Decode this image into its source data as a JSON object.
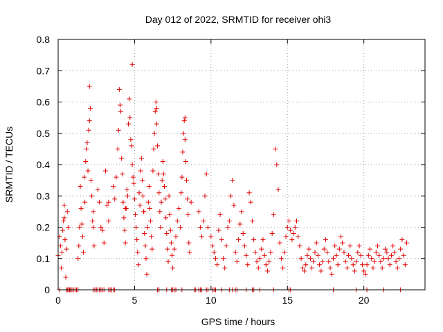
{
  "chart_data": {
    "type": "scatter",
    "title": "Day 012 of 2022, SRMTID for receiver ohi3",
    "xlabel": "GPS time / hours",
    "ylabel": "SRMTID / TECUs",
    "xlim": [
      0,
      24
    ],
    "ylim": [
      0,
      0.8
    ],
    "xticks": [
      0,
      5,
      10,
      15,
      20
    ],
    "yticks": [
      0,
      0.1,
      0.2,
      0.3,
      0.4,
      0.5,
      0.6,
      0.7,
      0.8
    ],
    "xtick_labels": [
      "0",
      "5",
      "10",
      "15",
      "20"
    ],
    "ytick_labels": [
      "0",
      "0.1",
      "0.2",
      "0.3",
      "0.4",
      "0.5",
      "0.6",
      "0.7",
      "0.8"
    ],
    "grid": true,
    "marker": "+",
    "color": "#e00000",
    "series": [
      {
        "name": "SRMTID",
        "x": [
          0.0,
          0.1,
          0.15,
          0.2,
          0.25,
          0.3,
          0.35,
          0.4,
          0.45,
          0.5,
          0.55,
          0.6,
          0.65,
          0.7,
          0.75,
          1.3,
          1.35,
          1.4,
          1.45,
          1.5,
          1.55,
          1.6,
          1.65,
          1.7,
          1.75,
          1.8,
          1.85,
          1.9,
          1.95,
          2.0,
          2.05,
          2.1,
          2.15,
          2.2,
          2.25,
          2.3,
          2.35,
          2.6,
          2.7,
          2.8,
          2.9,
          3.0,
          3.1,
          3.2,
          3.3,
          3.6,
          3.7,
          3.8,
          3.9,
          3.95,
          4.0,
          4.05,
          4.1,
          4.15,
          4.2,
          4.25,
          4.3,
          4.35,
          4.4,
          4.45,
          4.5,
          4.55,
          4.6,
          4.65,
          4.7,
          4.75,
          4.8,
          4.85,
          4.9,
          4.95,
          5.0,
          5.05,
          5.1,
          5.15,
          5.2,
          5.25,
          5.3,
          5.35,
          5.4,
          5.45,
          5.5,
          5.55,
          5.6,
          5.65,
          5.7,
          5.75,
          5.8,
          5.85,
          5.9,
          5.95,
          6.0,
          6.05,
          6.1,
          6.15,
          6.2,
          6.25,
          6.3,
          6.35,
          6.4,
          6.45,
          6.5,
          6.55,
          6.6,
          6.65,
          6.7,
          6.75,
          6.8,
          6.85,
          6.9,
          6.95,
          7.0,
          7.05,
          7.1,
          7.15,
          7.2,
          7.25,
          7.3,
          7.35,
          7.4,
          7.45,
          7.5,
          7.6,
          7.7,
          7.8,
          7.9,
          8.0,
          8.05,
          8.1,
          8.15,
          8.2,
          8.25,
          8.3,
          8.35,
          8.4,
          8.45,
          8.5,
          8.55,
          8.6,
          8.7,
          9.2,
          9.3,
          9.4,
          9.5,
          9.6,
          9.7,
          9.8,
          10.0,
          10.1,
          10.2,
          10.3,
          10.4,
          10.5,
          10.6,
          10.7,
          10.8,
          10.9,
          11.0,
          11.1,
          11.2,
          11.3,
          11.4,
          11.5,
          11.6,
          11.7,
          11.8,
          11.9,
          12.0,
          12.1,
          12.2,
          12.3,
          12.4,
          12.5,
          12.6,
          12.7,
          12.8,
          12.9,
          13.0,
          13.1,
          13.2,
          13.3,
          13.4,
          13.5,
          13.6,
          13.7,
          13.8,
          13.9,
          14.0,
          14.1,
          14.2,
          14.3,
          14.4,
          14.5,
          14.6,
          14.7,
          14.8,
          14.9,
          15.0,
          15.1,
          15.2,
          15.3,
          15.4,
          15.5,
          15.6,
          15.7,
          15.8,
          15.9,
          16.0,
          16.1,
          16.2,
          16.3,
          16.4,
          16.5,
          16.6,
          16.7,
          16.8,
          16.9,
          17.0,
          17.1,
          17.2,
          17.3,
          17.4,
          17.5,
          17.6,
          17.7,
          17.8,
          17.9,
          18.0,
          18.1,
          18.2,
          18.3,
          18.4,
          18.5,
          18.6,
          18.7,
          18.8,
          18.9,
          19.0,
          19.1,
          19.2,
          19.3,
          19.4,
          19.5,
          19.6,
          19.7,
          19.8,
          19.9,
          20.0,
          20.1,
          20.2,
          20.3,
          20.4,
          20.5,
          20.6,
          20.7,
          20.8,
          20.9,
          21.0,
          21.1,
          21.2,
          21.3,
          21.4,
          21.5,
          21.6,
          21.7,
          21.8,
          21.9,
          22.0,
          22.1,
          22.2,
          22.3,
          22.4,
          22.5,
          22.6,
          22.7,
          22.8,
          4.85,
          2.05,
          6.45,
          8.3,
          4.4,
          3.3,
          0.4,
          2.3,
          5.6
        ],
        "y": [
          0.11,
          0.17,
          0.14,
          0.07,
          0.12,
          0.19,
          0.22,
          0.27,
          0.16,
          0.04,
          0.13,
          0.25,
          0.2,
          0.0,
          0.0,
          0.1,
          0.14,
          0.2,
          0.33,
          0.26,
          0.21,
          0.17,
          0.12,
          0.36,
          0.28,
          0.41,
          0.45,
          0.47,
          0.38,
          0.51,
          0.54,
          0.58,
          0.35,
          0.3,
          0.22,
          0.25,
          0.14,
          0.32,
          0.28,
          0.2,
          0.19,
          0.15,
          0.38,
          0.27,
          0.22,
          0.33,
          0.29,
          0.36,
          0.45,
          0.51,
          0.64,
          0.59,
          0.57,
          0.42,
          0.37,
          0.28,
          0.23,
          0.19,
          0.15,
          0.26,
          0.32,
          0.3,
          0.53,
          0.61,
          0.55,
          0.48,
          0.46,
          0.4,
          0.36,
          0.34,
          0.29,
          0.24,
          0.2,
          0.16,
          0.12,
          0.08,
          0.31,
          0.27,
          0.38,
          0.42,
          0.35,
          0.3,
          0.25,
          0.18,
          0.14,
          0.1,
          0.05,
          0.2,
          0.28,
          0.33,
          0.26,
          0.22,
          0.17,
          0.13,
          0.38,
          0.45,
          0.5,
          0.57,
          0.6,
          0.53,
          0.46,
          0.37,
          0.31,
          0.25,
          0.2,
          0.28,
          0.35,
          0.41,
          0.37,
          0.33,
          0.29,
          0.23,
          0.18,
          0.13,
          0.09,
          0.3,
          0.24,
          0.19,
          0.15,
          0.11,
          0.07,
          0.13,
          0.17,
          0.22,
          0.26,
          0.2,
          0.31,
          0.36,
          0.44,
          0.5,
          0.54,
          0.48,
          0.41,
          0.35,
          0.29,
          0.24,
          0.15,
          0.12,
          0.28,
          0.25,
          0.2,
          0.17,
          0.22,
          0.3,
          0.37,
          0.2,
          0.17,
          0.14,
          0.12,
          0.1,
          0.08,
          0.19,
          0.24,
          0.16,
          0.1,
          0.07,
          0.14,
          0.2,
          0.22,
          0.3,
          0.35,
          0.27,
          0.12,
          0.09,
          0.16,
          0.21,
          0.25,
          0.18,
          0.14,
          0.11,
          0.08,
          0.31,
          0.28,
          0.22,
          0.16,
          0.12,
          0.09,
          0.07,
          0.1,
          0.13,
          0.16,
          0.11,
          0.08,
          0.06,
          0.09,
          0.12,
          0.18,
          0.24,
          0.45,
          0.4,
          0.32,
          0.15,
          0.1,
          0.07,
          0.12,
          0.17,
          0.2,
          0.22,
          0.19,
          0.16,
          0.18,
          0.2,
          0.22,
          0.17,
          0.14,
          0.1,
          0.07,
          0.06,
          0.08,
          0.11,
          0.13,
          0.1,
          0.07,
          0.09,
          0.12,
          0.15,
          0.11,
          0.08,
          0.06,
          0.09,
          0.13,
          0.16,
          0.12,
          0.09,
          0.07,
          0.05,
          0.1,
          0.14,
          0.11,
          0.08,
          0.13,
          0.17,
          0.15,
          0.12,
          0.09,
          0.07,
          0.11,
          0.14,
          0.1,
          0.08,
          0.06,
          0.09,
          0.12,
          0.14,
          0.11,
          0.08,
          0.06,
          0.05,
          0.08,
          0.11,
          0.13,
          0.1,
          0.07,
          0.09,
          0.12,
          0.14,
          0.11,
          0.09,
          0.07,
          0.1,
          0.13,
          0.12,
          0.1,
          0.08,
          0.11,
          0.14,
          0.12,
          0.09,
          0.07,
          0.1,
          0.13,
          0.16,
          0.11,
          0.08,
          0.15,
          0.72,
          0.65,
          0.58,
          0.55,
          0.26,
          0.28,
          0.23,
          0.2,
          0.25
        ],
        "zero_markers_x": [
          0.1,
          0.55,
          0.6,
          0.7,
          0.8,
          0.9,
          1.0,
          1.1,
          1.2,
          1.3,
          2.3,
          2.4,
          2.5,
          2.6,
          2.7,
          2.8,
          2.9,
          3.0,
          3.3,
          3.4,
          3.5,
          3.6,
          3.7,
          6.5,
          6.6,
          7.1,
          7.4,
          7.5,
          7.6,
          7.7,
          8.1,
          8.9,
          9.0,
          9.2,
          9.3,
          9.4,
          9.7,
          9.8,
          10.1,
          10.2,
          10.3,
          10.7,
          11.2,
          11.4,
          11.6,
          11.7,
          12.3,
          12.7,
          12.8,
          13.2,
          14.1,
          15.1,
          15.2,
          18.0,
          19.5,
          20.2,
          21.3,
          22.4
        ]
      }
    ]
  }
}
